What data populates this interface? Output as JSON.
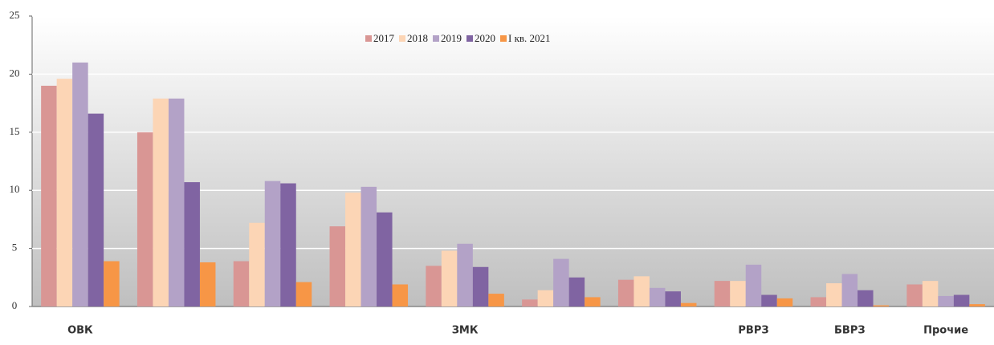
{
  "chart_data": {
    "type": "bar",
    "categories": [
      "ОВК",
      null,
      null,
      null,
      "ЗМК",
      null,
      null,
      "РВРЗ",
      "БВРЗ",
      "Прочие"
    ],
    "series": [
      {
        "name": "2017",
        "color": "#d99694",
        "values": [
          19.0,
          15.0,
          3.9,
          6.9,
          3.5,
          0.6,
          2.3,
          2.2,
          0.8,
          1.9
        ]
      },
      {
        "name": "2018",
        "color": "#fcd5b5",
        "values": [
          19.6,
          17.9,
          7.2,
          9.8,
          4.8,
          1.4,
          2.6,
          2.2,
          2.0,
          2.2
        ]
      },
      {
        "name": "2019",
        "color": "#b3a2c7",
        "values": [
          21.0,
          17.9,
          10.8,
          10.3,
          5.4,
          4.1,
          1.6,
          3.6,
          2.8,
          0.9
        ]
      },
      {
        "name": "2020",
        "color": "#8064a2",
        "values": [
          16.6,
          10.7,
          10.6,
          8.1,
          3.4,
          2.5,
          1.3,
          1.0,
          1.4,
          1.0
        ]
      },
      {
        "name": "I кв. 2021",
        "color": "#f79646",
        "values": [
          3.9,
          3.8,
          2.1,
          1.9,
          1.1,
          0.8,
          0.3,
          0.7,
          0.1,
          0.2
        ]
      }
    ],
    "ylim": [
      0,
      25
    ],
    "yticks": [
      0,
      5,
      10,
      15,
      20,
      25
    ],
    "grid": true,
    "legend": "top"
  }
}
